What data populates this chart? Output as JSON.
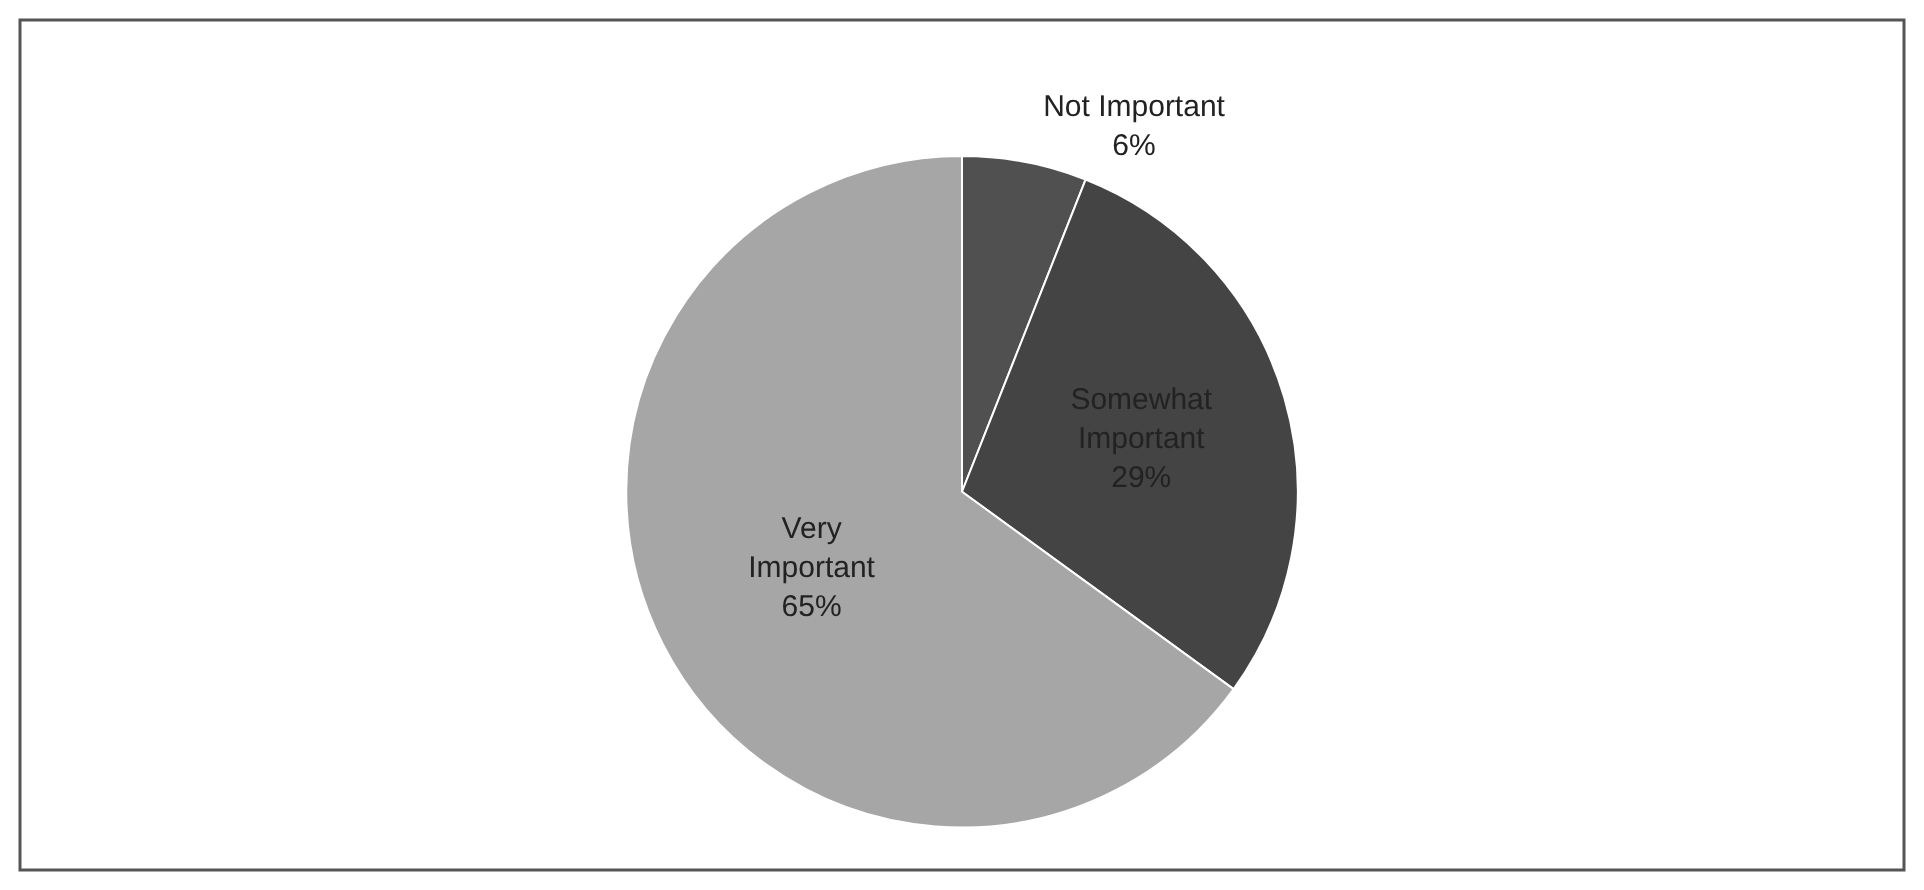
{
  "chart_data": {
    "type": "pie",
    "categories": [
      "Not Important",
      "Somewhat Important",
      "Very Important"
    ],
    "values": [
      6,
      29,
      65
    ],
    "value_labels": [
      "6%",
      "29%",
      "65%"
    ],
    "colors": [
      "#505050",
      "#444444",
      "#a6a6a6"
    ],
    "legend": false
  }
}
